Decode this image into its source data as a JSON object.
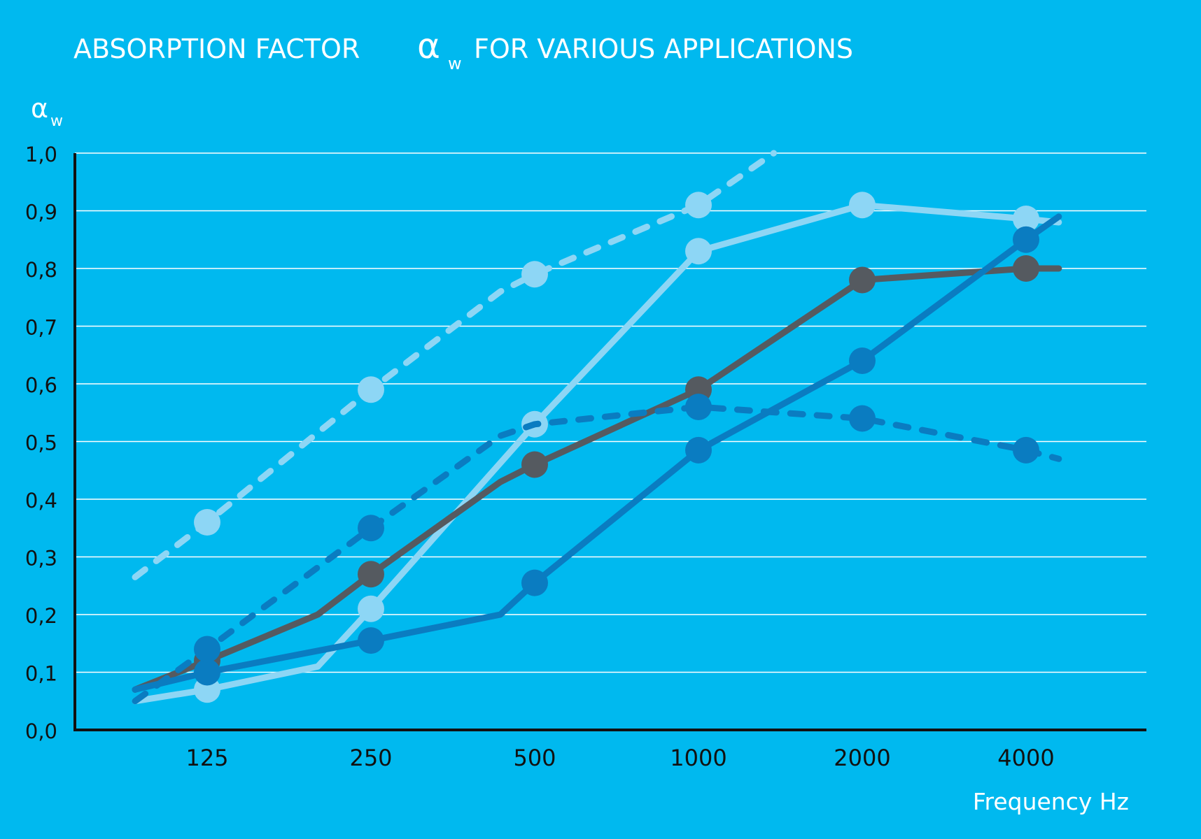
{
  "chart_data": {
    "type": "line",
    "title": {
      "part1": "ABSORPTION FACTOR",
      "symbol": "α",
      "subscript": "w",
      "part2": "FOR VARIOUS APPLICATIONS"
    },
    "ylabel": {
      "symbol": "α",
      "subscript": "w"
    },
    "xlabel": "Frequency Hz",
    "categories": [
      "125",
      "250",
      "500",
      "1000",
      "2000",
      "4000"
    ],
    "yticks": [
      "0,0",
      "0,1",
      "0,2",
      "0,3",
      "0,4",
      "0,5",
      "0,6",
      "0,7",
      "0,8",
      "0,9",
      "1,0"
    ],
    "ylim": [
      0,
      1.0
    ],
    "grid": true,
    "colors": {
      "background": "#00b9ef",
      "light": "#8dd6f5",
      "gray": "#555a60",
      "blue": "#0a7cc1"
    },
    "series": [
      {
        "name": "light-dashed",
        "color": "#8dd6f5",
        "dashed": true,
        "values": [
          0.36,
          0.59,
          0.79,
          0.91,
          null,
          null
        ],
        "path": [
          [
            -0.44,
            0.265
          ],
          [
            0,
            0.36
          ],
          [
            1,
            0.59
          ],
          [
            1.79,
            0.76
          ],
          [
            2,
            0.79
          ],
          [
            3,
            0.91
          ],
          [
            3.46,
            1.0
          ]
        ]
      },
      {
        "name": "light-solid",
        "color": "#8dd6f5",
        "dashed": false,
        "values": [
          0.07,
          0.21,
          0.53,
          0.83,
          0.91,
          0.886
        ],
        "path": [
          [
            -0.44,
            0.05
          ],
          [
            0,
            0.07
          ],
          [
            0.675,
            0.11
          ],
          [
            1,
            0.21
          ],
          [
            2,
            0.53
          ],
          [
            3,
            0.83
          ],
          [
            4,
            0.91
          ],
          [
            5,
            0.886
          ],
          [
            5.2,
            0.88
          ]
        ]
      },
      {
        "name": "gray-solid",
        "color": "#555a60",
        "dashed": false,
        "values": [
          0.12,
          0.27,
          0.46,
          0.59,
          0.78,
          0.8
        ],
        "path": [
          [
            -0.44,
            0.07
          ],
          [
            0,
            0.12
          ],
          [
            0.675,
            0.2
          ],
          [
            1,
            0.27
          ],
          [
            1.79,
            0.43
          ],
          [
            2,
            0.46
          ],
          [
            3,
            0.59
          ],
          [
            4,
            0.78
          ],
          [
            5,
            0.8
          ],
          [
            5.2,
            0.8
          ]
        ]
      },
      {
        "name": "blue-solid",
        "color": "#0a7cc1",
        "dashed": false,
        "values": [
          0.1,
          0.155,
          0.255,
          0.485,
          0.64,
          0.85
        ],
        "path": [
          [
            -0.44,
            0.07
          ],
          [
            0,
            0.1
          ],
          [
            1,
            0.155
          ],
          [
            1.79,
            0.2
          ],
          [
            2,
            0.255
          ],
          [
            3,
            0.485
          ],
          [
            4,
            0.64
          ],
          [
            5,
            0.85
          ],
          [
            5.2,
            0.89
          ]
        ]
      },
      {
        "name": "blue-dashed",
        "color": "#0a7cc1",
        "dashed": true,
        "values": [
          0.14,
          0.35,
          null,
          0.56,
          0.54,
          0.485
        ],
        "path": [
          [
            -0.44,
            0.05
          ],
          [
            0,
            0.14
          ],
          [
            1,
            0.35
          ],
          [
            1.79,
            0.51
          ],
          [
            2,
            0.53
          ],
          [
            3,
            0.56
          ],
          [
            4,
            0.54
          ],
          [
            5,
            0.485
          ],
          [
            5.2,
            0.47
          ]
        ]
      }
    ]
  }
}
